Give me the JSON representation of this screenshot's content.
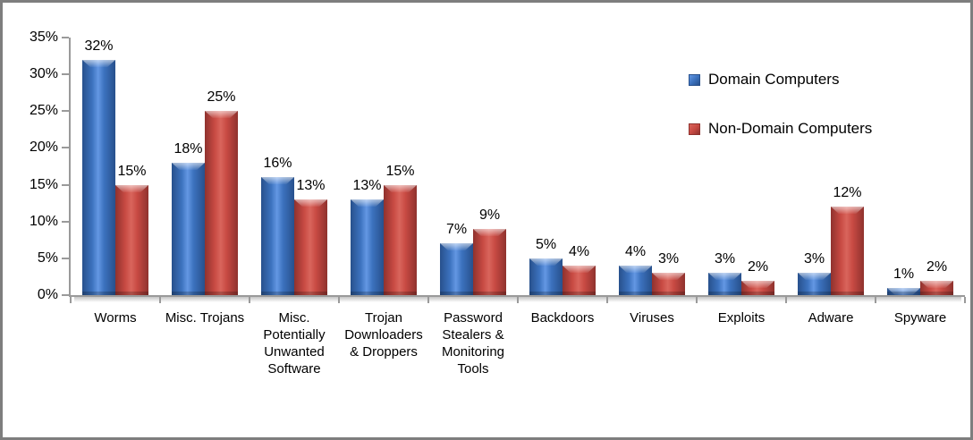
{
  "chart_data": {
    "type": "bar",
    "title": "",
    "xlabel": "",
    "ylabel": "",
    "categories": [
      "Worms",
      "Misc. Trojans",
      "Misc. Potentially Unwanted Software",
      "Trojan Downloaders & Droppers",
      "Password Stealers & Monitoring Tools",
      "Backdoors",
      "Viruses",
      "Exploits",
      "Adware",
      "Spyware"
    ],
    "series": [
      {
        "name": "Domain Computers",
        "values": [
          32,
          18,
          16,
          13,
          7,
          5,
          4,
          3,
          3,
          1
        ],
        "fill": "#3c72be",
        "light": "#6397e3",
        "dark": "#27508c"
      },
      {
        "name": "Non-Domain Computers",
        "values": [
          15,
          25,
          13,
          15,
          9,
          4,
          3,
          2,
          12,
          2
        ],
        "fill": "#c84a43",
        "light": "#d9655c",
        "dark": "#8f322e"
      }
    ],
    "value_labels": [
      [
        "32%",
        "18%",
        "16%",
        "13%",
        "7%",
        "5%",
        "4%",
        "3%",
        "3%",
        "1%"
      ],
      [
        "15%",
        "25%",
        "13%",
        "15%",
        "9%",
        "4%",
        "3%",
        "2%",
        "12%",
        "2%"
      ]
    ],
    "value_suffix": "%",
    "ylim": [
      0,
      35
    ],
    "ytick_step": 5,
    "ytick_labels": [
      "0%",
      "5%",
      "10%",
      "15%",
      "20%",
      "25%",
      "30%",
      "35%"
    ],
    "grid": false,
    "legend_position": "right"
  },
  "colors": {
    "axis": "#9a9a9a",
    "frame_border": "#7e7e7e",
    "background": "#ffffff",
    "text": "#000000",
    "series_blue": "#3c72be",
    "series_red": "#c84a43"
  }
}
